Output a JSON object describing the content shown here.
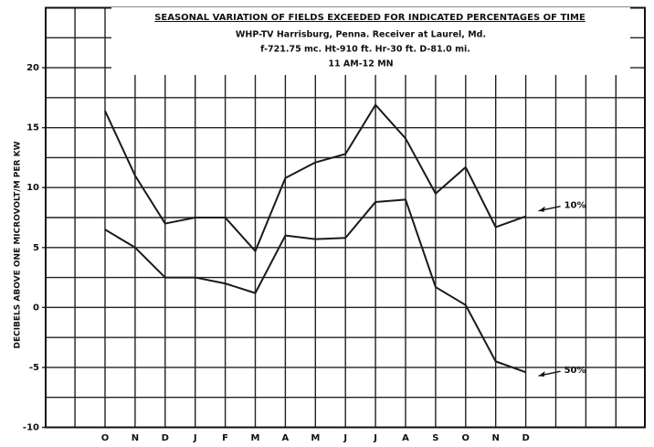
{
  "chart_data": {
    "type": "line",
    "title": "SEASONAL VARIATION OF FIELDS EXCEEDED FOR INDICATED PERCENTAGES OF TIME",
    "subtitle": [
      "WHP-TV Harrisburg, Penna.   Receiver at Laurel, Md.",
      "f-721.75 mc.   Ht-910 ft.   Hr-30 ft.   D-81.0 mi.",
      "11 AM-12 MN"
    ],
    "y_label": "DECIBELS ABOVE ONE MICROVOLT/M PER KW",
    "categories": [
      "O",
      "N",
      "D",
      "J",
      "F",
      "M",
      "A",
      "M",
      "J",
      "J",
      "A",
      "S",
      "O",
      "N",
      "D"
    ],
    "series": [
      {
        "name": "10%",
        "color": "#1a1a1a",
        "values": [
          16.4,
          11,
          7,
          7.5,
          7.5,
          4.7,
          10.8,
          12.1,
          12.8,
          16.9,
          14.1,
          9.5,
          11.7,
          6.7,
          7.6
        ]
      },
      {
        "name": "50%",
        "color": "#1a1a1a",
        "values": [
          6.5,
          5,
          2.5,
          2.5,
          2,
          1.2,
          6,
          5.7,
          5.8,
          8.8,
          9,
          1.7,
          0.2,
          -4.5,
          -5.4
        ]
      }
    ],
    "ylim": [
      -10,
      25
    ],
    "yticks": [
      -10,
      -5,
      0,
      5,
      10,
      15,
      20
    ],
    "minor_yticks": [
      -7.5,
      -2.5,
      2.5,
      7.5,
      12.5,
      17.5,
      22.5
    ],
    "grid": true
  }
}
